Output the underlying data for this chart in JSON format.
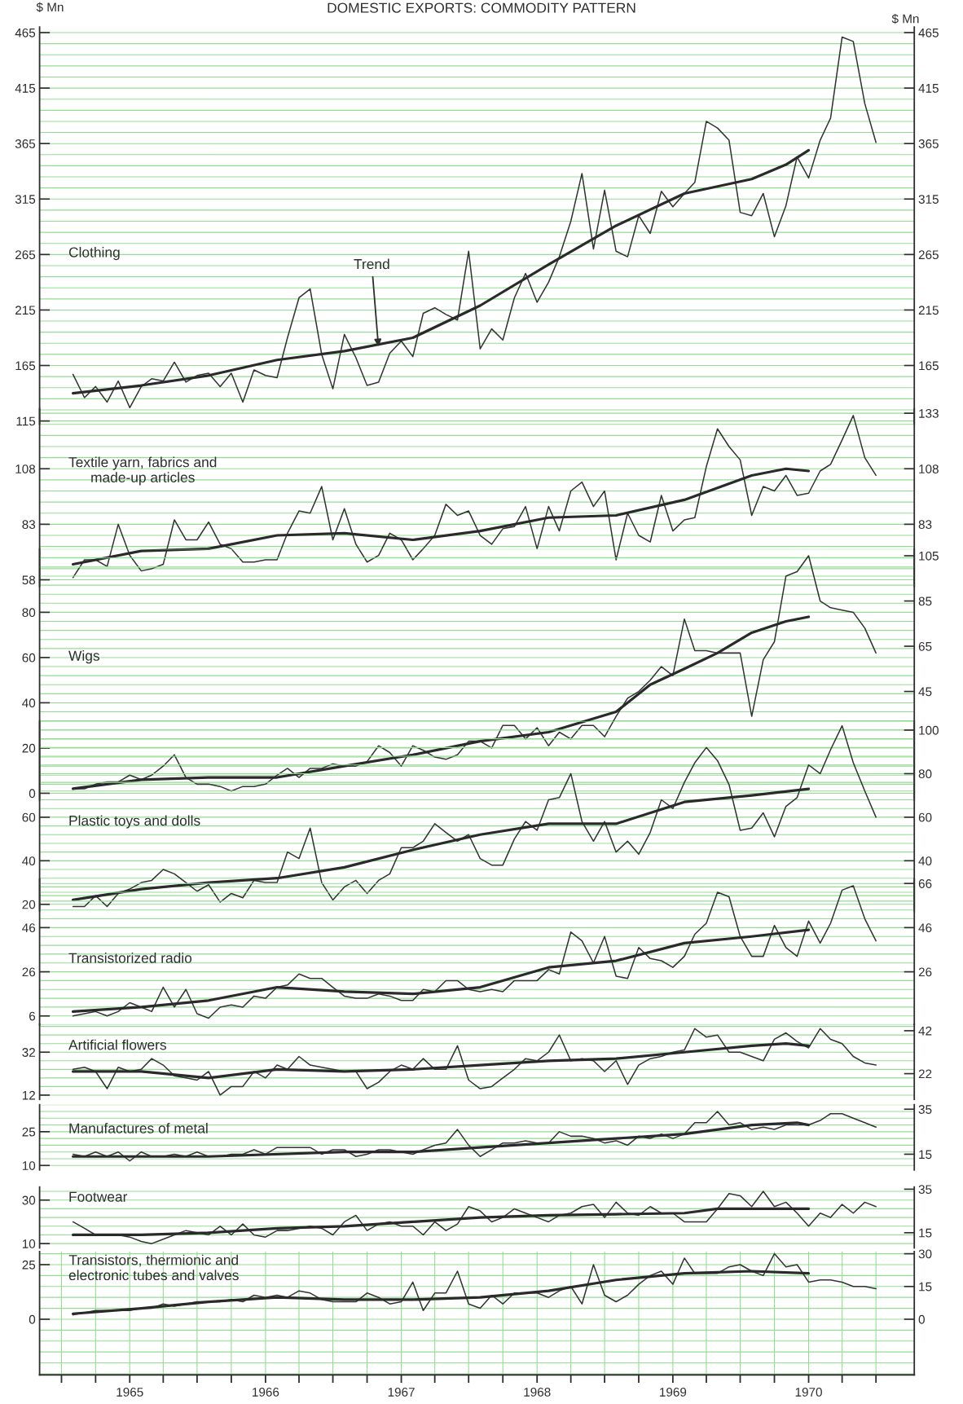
{
  "chart_data": [
    {
      "type": "line",
      "title": "Clothing",
      "ylabel": "$ Mn",
      "y2label": "$ Mn",
      "line_style": "solid",
      "grid": true,
      "tick_labels": "y",
      "annotations": [
        "DOMESTIC EXPORTS: COMMODITY PATTERN",
        {
          "text": "Trend",
          "x": "1966-11",
          "y": 180
        }
      ],
      "x": [
        "1964-08",
        "1964-09",
        "1964-10",
        "1964-11",
        "1964-12",
        "1965-01",
        "1965-02",
        "1965-03",
        "1965-04",
        "1965-05",
        "1965-06",
        "1965-07",
        "1965-08",
        "1965-09",
        "1965-10",
        "1965-11",
        "1965-12",
        "1966-01",
        "1966-02",
        "1966-03",
        "1966-04",
        "1966-05",
        "1966-06",
        "1966-07",
        "1966-08",
        "1966-09",
        "1966-10",
        "1966-11",
        "1966-12",
        "1967-01",
        "1967-02",
        "1967-03",
        "1967-04",
        "1967-05",
        "1967-06",
        "1967-07",
        "1967-08",
        "1967-09",
        "1967-10",
        "1967-11",
        "1967-12",
        "1968-01",
        "1968-02",
        "1968-03",
        "1968-04",
        "1968-05",
        "1968-06",
        "1968-07",
        "1968-08",
        "1968-09",
        "1968-10",
        "1968-11",
        "1968-12",
        "1969-01",
        "1969-02",
        "1969-03",
        "1969-04",
        "1969-05",
        "1969-06",
        "1969-07",
        "1969-08",
        "1969-09",
        "1969-10",
        "1969-11",
        "1969-12",
        "1970-01",
        "1970-02",
        "1970-03",
        "1970-04",
        "1970-05",
        "1970-06",
        "1970-07"
      ],
      "series": [
        {
          "color": "#333333",
          "values": [
            157,
            136,
            146,
            132,
            151,
            127,
            146,
            153,
            151,
            168,
            150,
            156,
            158,
            146,
            158,
            132,
            161,
            156,
            154,
            190,
            226,
            234,
            175,
            144,
            193,
            172,
            147,
            150,
            176,
            187,
            173,
            212,
            217,
            211,
            206,
            268,
            180,
            198,
            188,
            226,
            248,
            222,
            240,
            263,
            295,
            338,
            270,
            323,
            268,
            263,
            300,
            284,
            322,
            308,
            320,
            330,
            385,
            379,
            368,
            303,
            300,
            320,
            281,
            309,
            353,
            334,
            368,
            388,
            461,
            457,
            401,
            366
          ]
        },
        {
          "color": "#2a2a2a",
          "type": "line",
          "x": [
            "1964-08",
            "1965-02",
            "1965-08",
            "1966-02",
            "1966-08",
            "1967-02",
            "1967-08",
            "1968-02",
            "1968-08",
            "1969-02",
            "1969-08",
            "1969-11",
            "1970-01"
          ],
          "values": [
            140,
            147,
            156,
            170,
            178,
            190,
            219,
            256,
            291,
            320,
            333,
            346,
            359
          ]
        }
      ],
      "xlim": [
        "1964-05-03",
        "1970-10-12"
      ],
      "ylim": [
        112,
        470
      ],
      "yticks": [
        115,
        165,
        215,
        265,
        315,
        365,
        415,
        465
      ],
      "y2lim": [
        112,
        470
      ],
      "y2ticks": [
        165,
        215,
        265,
        315,
        365,
        415,
        465
      ]
    },
    {
      "type": "line",
      "title": "Textile yarn, fabrics and\nmade-up articles",
      "line_style": "solid",
      "grid": true,
      "tick_labels": "y",
      "x": [
        "1964-08",
        "1964-09",
        "1964-10",
        "1964-11",
        "1964-12",
        "1965-01",
        "1965-02",
        "1965-03",
        "1965-04",
        "1965-05",
        "1965-06",
        "1965-07",
        "1965-08",
        "1965-09",
        "1965-10",
        "1965-11",
        "1965-12",
        "1966-01",
        "1966-02",
        "1966-03",
        "1966-04",
        "1966-05",
        "1966-06",
        "1966-07",
        "1966-08",
        "1966-09",
        "1966-10",
        "1966-11",
        "1966-12",
        "1967-01",
        "1967-02",
        "1967-03",
        "1967-04",
        "1967-05",
        "1967-06",
        "1967-07",
        "1967-08",
        "1967-09",
        "1967-10",
        "1967-11",
        "1967-12",
        "1968-01",
        "1968-02",
        "1968-03",
        "1968-04",
        "1968-05",
        "1968-06",
        "1968-07",
        "1968-08",
        "1968-09",
        "1968-10",
        "1968-11",
        "1968-12",
        "1969-01",
        "1969-02",
        "1969-03",
        "1969-04",
        "1969-05",
        "1969-06",
        "1969-07",
        "1969-08",
        "1969-09",
        "1969-10",
        "1969-11",
        "1969-12",
        "1970-01",
        "1970-02",
        "1970-03",
        "1970-04",
        "1970-05",
        "1970-06",
        "1970-07"
      ],
      "series": [
        {
          "color": "#333333",
          "values": [
            59,
            67,
            67,
            64,
            83,
            69,
            62,
            63,
            65,
            85,
            76,
            76,
            84,
            74,
            72,
            66,
            66,
            67,
            67,
            79,
            89,
            88,
            100,
            76,
            90,
            74,
            66,
            69,
            79,
            76,
            67,
            72,
            78,
            92,
            87,
            89,
            78,
            74,
            81,
            82,
            91,
            72,
            91,
            80,
            98,
            102,
            91,
            98,
            67,
            88,
            78,
            75,
            96,
            80,
            85,
            86,
            109,
            126,
            118,
            112,
            87,
            100,
            98,
            105,
            96,
            97,
            107,
            110,
            121,
            132,
            113,
            105
          ]
        },
        {
          "color": "#2a2a2a",
          "type": "line",
          "x": [
            "1964-08",
            "1965-02",
            "1965-08",
            "1966-02",
            "1966-08",
            "1967-02",
            "1967-08",
            "1968-02",
            "1968-08",
            "1969-02",
            "1969-08",
            "1969-11",
            "1970-01"
          ],
          "values": [
            65,
            71,
            72,
            78,
            79,
            76,
            80,
            86,
            87,
            94,
            105,
            108,
            107
          ]
        }
      ],
      "xlim": [
        "1964-05-03",
        "1970-10-12"
      ],
      "ylim": [
        55,
        135
      ],
      "yticks": [
        58,
        83,
        108
      ],
      "y2lim": [
        55,
        135
      ],
      "y2ticks": [
        83,
        108,
        133
      ]
    },
    {
      "type": "line",
      "title": "Wigs",
      "line_style": "solid",
      "grid": true,
      "tick_labels": "y",
      "x": [
        "1964-08",
        "1964-09",
        "1964-10",
        "1964-11",
        "1964-12",
        "1965-01",
        "1965-02",
        "1965-03",
        "1965-04",
        "1965-05",
        "1965-06",
        "1965-07",
        "1965-08",
        "1965-09",
        "1965-10",
        "1965-11",
        "1965-12",
        "1966-01",
        "1966-02",
        "1966-03",
        "1966-04",
        "1966-05",
        "1966-06",
        "1966-07",
        "1966-08",
        "1966-09",
        "1966-10",
        "1966-11",
        "1966-12",
        "1967-01",
        "1967-02",
        "1967-03",
        "1967-04",
        "1967-05",
        "1967-06",
        "1967-07",
        "1967-08",
        "1967-09",
        "1967-10",
        "1967-11",
        "1967-12",
        "1968-01",
        "1968-02",
        "1968-03",
        "1968-04",
        "1968-05",
        "1968-06",
        "1968-07",
        "1968-08",
        "1968-09",
        "1968-10",
        "1968-11",
        "1968-12",
        "1969-01",
        "1969-02",
        "1969-03",
        "1969-04",
        "1969-05",
        "1969-06",
        "1969-07",
        "1969-08",
        "1969-09",
        "1969-10",
        "1969-11",
        "1969-12",
        "1970-01",
        "1970-02",
        "1970-03",
        "1970-04",
        "1970-05",
        "1970-06",
        "1970-07"
      ],
      "series": [
        {
          "color": "#333333",
          "values": [
            2,
            2,
            4,
            5,
            5,
            8,
            6,
            8,
            12,
            17,
            7,
            4,
            4,
            3,
            1,
            3,
            3,
            4,
            8,
            11,
            7,
            11,
            11,
            13,
            12,
            12,
            14,
            21,
            18,
            12,
            21,
            19,
            16,
            15,
            17,
            23,
            23,
            20,
            30,
            30,
            24,
            29,
            21,
            27,
            24,
            30,
            30,
            25,
            34,
            42,
            45,
            50,
            56,
            52,
            77,
            63,
            63,
            62,
            62,
            62,
            34,
            59,
            67,
            96,
            98,
            105,
            85,
            82,
            81,
            80,
            73,
            62
          ]
        },
        {
          "color": "#2a2a2a",
          "type": "line",
          "x": [
            "1964-08",
            "1965-02",
            "1965-08",
            "1966-02",
            "1966-08",
            "1967-02",
            "1967-08",
            "1968-02",
            "1968-08",
            "1968-11",
            "1969-02",
            "1969-05",
            "1969-08",
            "1969-11",
            "1970-01"
          ],
          "values": [
            2,
            6,
            7,
            7,
            12,
            17,
            23,
            27,
            36,
            48,
            55,
            62,
            71,
            76,
            78
          ]
        }
      ],
      "xlim": [
        "1964-05-03",
        "1970-10-12"
      ],
      "ylim": [
        -3,
        108
      ],
      "yticks": [
        0,
        20,
        40,
        60,
        80
      ],
      "y2lim": [
        -3,
        108
      ],
      "y2ticks": [
        45,
        65,
        85,
        105
      ]
    },
    {
      "type": "line",
      "title": "Plastic toys and dolls",
      "line_style": "solid",
      "grid": true,
      "tick_labels": "y",
      "x": [
        "1964-08",
        "1964-09",
        "1964-10",
        "1964-11",
        "1964-12",
        "1965-01",
        "1965-02",
        "1965-03",
        "1965-04",
        "1965-05",
        "1965-06",
        "1965-07",
        "1965-08",
        "1965-09",
        "1965-10",
        "1965-11",
        "1965-12",
        "1966-01",
        "1966-02",
        "1966-03",
        "1966-04",
        "1966-05",
        "1966-06",
        "1966-07",
        "1966-08",
        "1966-09",
        "1966-10",
        "1966-11",
        "1966-12",
        "1967-01",
        "1967-02",
        "1967-03",
        "1967-04",
        "1967-05",
        "1967-06",
        "1967-07",
        "1967-08",
        "1967-09",
        "1967-10",
        "1967-11",
        "1967-12",
        "1968-01",
        "1968-02",
        "1968-03",
        "1968-04",
        "1968-05",
        "1968-06",
        "1968-07",
        "1968-08",
        "1968-09",
        "1968-10",
        "1968-11",
        "1968-12",
        "1969-01",
        "1969-02",
        "1969-03",
        "1969-04",
        "1969-05",
        "1969-06",
        "1969-07",
        "1969-08",
        "1969-09",
        "1969-10",
        "1969-11",
        "1969-12",
        "1970-01",
        "1970-02",
        "1970-03",
        "1970-04",
        "1970-05",
        "1970-06",
        "1970-07"
      ],
      "series": [
        {
          "color": "#333333",
          "values": [
            19,
            19,
            24,
            19,
            25,
            27,
            30,
            31,
            36,
            34,
            30,
            26,
            29,
            21,
            25,
            23,
            31,
            30,
            30,
            44,
            41,
            55,
            30,
            22,
            28,
            31,
            25,
            31,
            34,
            46,
            46,
            49,
            57,
            53,
            49,
            52,
            41,
            38,
            38,
            50,
            58,
            54,
            68,
            69,
            80,
            58,
            49,
            58,
            44,
            49,
            43,
            53,
            68,
            64,
            76,
            85,
            92,
            86,
            75,
            54,
            55,
            62,
            51,
            65,
            69,
            84,
            80,
            91,
            102,
            85,
            72,
            60
          ]
        },
        {
          "color": "#2a2a2a",
          "type": "line",
          "x": [
            "1964-08",
            "1965-02",
            "1965-08",
            "1966-02",
            "1966-08",
            "1967-02",
            "1967-08",
            "1968-02",
            "1968-08",
            "1969-02",
            "1969-08",
            "1970-01"
          ],
          "values": [
            22,
            27,
            30,
            32,
            37,
            45,
            52,
            57,
            57,
            67,
            70,
            73
          ]
        }
      ],
      "xlim": [
        "1964-05-03",
        "1970-10-12"
      ],
      "ylim": [
        17,
        104
      ],
      "yticks": [
        20,
        40,
        60
      ],
      "y2lim": [
        17,
        104
      ],
      "y2ticks": [
        40,
        60,
        80,
        100
      ]
    },
    {
      "type": "line",
      "title": "Transistorized radio",
      "line_style": "solid",
      "grid": true,
      "tick_labels": "y",
      "x": [
        "1964-08",
        "1964-09",
        "1964-10",
        "1964-11",
        "1964-12",
        "1965-01",
        "1965-02",
        "1965-03",
        "1965-04",
        "1965-05",
        "1965-06",
        "1965-07",
        "1965-08",
        "1965-09",
        "1965-10",
        "1965-11",
        "1965-12",
        "1966-01",
        "1966-02",
        "1966-03",
        "1966-04",
        "1966-05",
        "1966-06",
        "1966-07",
        "1966-08",
        "1966-09",
        "1966-10",
        "1966-11",
        "1966-12",
        "1967-01",
        "1967-02",
        "1967-03",
        "1967-04",
        "1967-05",
        "1967-06",
        "1967-07",
        "1967-08",
        "1967-09",
        "1967-10",
        "1967-11",
        "1967-12",
        "1968-01",
        "1968-02",
        "1968-03",
        "1968-04",
        "1968-05",
        "1968-06",
        "1968-07",
        "1968-08",
        "1968-09",
        "1968-10",
        "1968-11",
        "1968-12",
        "1969-01",
        "1969-02",
        "1969-03",
        "1969-04",
        "1969-05",
        "1969-06",
        "1969-07",
        "1969-08",
        "1969-09",
        "1969-10",
        "1969-11",
        "1969-12",
        "1970-01",
        "1970-02",
        "1970-03",
        "1970-04",
        "1970-05",
        "1970-06",
        "1970-07"
      ],
      "series": [
        {
          "color": "#333333",
          "values": [
            6,
            7,
            8,
            6,
            8,
            12,
            10,
            8,
            19,
            10,
            18,
            7,
            5,
            10,
            11,
            10,
            15,
            14,
            19,
            20,
            25,
            23,
            23,
            19,
            15,
            14,
            14,
            16,
            15,
            13,
            13,
            18,
            17,
            22,
            22,
            18,
            17,
            18,
            17,
            22,
            22,
            22,
            27,
            25,
            44,
            40,
            30,
            42,
            24,
            23,
            37,
            32,
            31,
            28,
            33,
            43,
            48,
            62,
            60,
            42,
            33,
            33,
            47,
            37,
            33,
            49,
            39,
            48,
            63,
            65,
            50,
            40
          ]
        },
        {
          "color": "#2a2a2a",
          "type": "line",
          "x": [
            "1964-08",
            "1965-02",
            "1965-08",
            "1966-02",
            "1966-08",
            "1967-02",
            "1967-08",
            "1968-02",
            "1968-08",
            "1969-02",
            "1969-08",
            "1970-01"
          ],
          "values": [
            8,
            10,
            13,
            19,
            17,
            16,
            19,
            28,
            31,
            39,
            42,
            45
          ]
        }
      ],
      "xlim": [
        "1964-05-03",
        "1970-10-12"
      ],
      "ylim": [
        2,
        68
      ],
      "yticks": [
        6,
        26,
        46
      ],
      "y2lim": [
        2,
        68
      ],
      "y2ticks": [
        26,
        46,
        66
      ]
    },
    {
      "type": "line",
      "title": "Artificial flowers",
      "line_style": "solid",
      "grid": true,
      "tick_labels": "y",
      "x": [
        "1964-08",
        "1964-09",
        "1964-10",
        "1964-11",
        "1964-12",
        "1965-01",
        "1965-02",
        "1965-03",
        "1965-04",
        "1965-05",
        "1965-06",
        "1965-07",
        "1965-08",
        "1965-09",
        "1965-10",
        "1965-11",
        "1965-12",
        "1966-01",
        "1966-02",
        "1966-03",
        "1966-04",
        "1966-05",
        "1966-06",
        "1966-07",
        "1966-08",
        "1966-09",
        "1966-10",
        "1966-11",
        "1966-12",
        "1967-01",
        "1967-02",
        "1967-03",
        "1967-04",
        "1967-05",
        "1967-06",
        "1967-07",
        "1967-08",
        "1967-09",
        "1967-10",
        "1967-11",
        "1967-12",
        "1968-01",
        "1968-02",
        "1968-03",
        "1968-04",
        "1968-05",
        "1968-06",
        "1968-07",
        "1968-08",
        "1968-09",
        "1968-10",
        "1968-11",
        "1968-12",
        "1969-01",
        "1969-02",
        "1969-03",
        "1969-04",
        "1969-05",
        "1969-06",
        "1969-07",
        "1969-08",
        "1969-09",
        "1969-10",
        "1969-11",
        "1969-12",
        "1970-01",
        "1970-02",
        "1970-03",
        "1970-04",
        "1970-05",
        "1970-06",
        "1970-07"
      ],
      "series": [
        {
          "color": "#333333",
          "values": [
            24,
            25,
            23,
            15,
            25,
            23,
            24,
            29,
            26,
            21,
            20,
            19,
            23,
            12,
            16,
            16,
            23,
            20,
            26,
            24,
            30,
            26,
            25,
            24,
            23,
            23,
            15,
            18,
            23,
            26,
            24,
            29,
            24,
            24,
            35,
            19,
            15,
            16,
            20,
            24,
            29,
            28,
            32,
            40,
            28,
            29,
            28,
            23,
            28,
            17,
            26,
            29,
            30,
            32,
            33,
            43,
            39,
            40,
            32,
            32,
            30,
            28,
            38,
            41,
            37,
            34,
            43,
            38,
            36,
            30,
            27,
            26
          ]
        },
        {
          "color": "#2a2a2a",
          "type": "line",
          "x": [
            "1964-08",
            "1965-02",
            "1965-08",
            "1966-02",
            "1966-08",
            "1967-02",
            "1967-08",
            "1968-02",
            "1968-08",
            "1969-02",
            "1969-08",
            "1969-11",
            "1970-01"
          ],
          "values": [
            23,
            23,
            20,
            24,
            23,
            24,
            26,
            28,
            29,
            32,
            35,
            36,
            35
          ]
        }
      ],
      "xlim": [
        "1964-05-03",
        "1970-10-12"
      ],
      "ylim": [
        10,
        45
      ],
      "yticks": [
        12,
        32
      ],
      "y2lim": [
        10,
        45
      ],
      "y2ticks": [
        22,
        42
      ]
    },
    {
      "type": "line",
      "title": "Manufactures of metal",
      "line_style": "solid",
      "grid": true,
      "tick_labels": "y",
      "x": [
        "1964-08",
        "1964-09",
        "1964-10",
        "1964-11",
        "1964-12",
        "1965-01",
        "1965-02",
        "1965-03",
        "1965-04",
        "1965-05",
        "1965-06",
        "1965-07",
        "1965-08",
        "1965-09",
        "1965-10",
        "1965-11",
        "1965-12",
        "1966-01",
        "1966-02",
        "1966-03",
        "1966-04",
        "1966-05",
        "1966-06",
        "1966-07",
        "1966-08",
        "1966-09",
        "1966-10",
        "1966-11",
        "1966-12",
        "1967-01",
        "1967-02",
        "1967-03",
        "1967-04",
        "1967-05",
        "1967-06",
        "1967-07",
        "1967-08",
        "1967-09",
        "1967-10",
        "1967-11",
        "1967-12",
        "1968-01",
        "1968-02",
        "1968-03",
        "1968-04",
        "1968-05",
        "1968-06",
        "1968-07",
        "1968-08",
        "1968-09",
        "1968-10",
        "1968-11",
        "1968-12",
        "1969-01",
        "1969-02",
        "1969-03",
        "1969-04",
        "1969-05",
        "1969-06",
        "1969-07",
        "1969-08",
        "1969-09",
        "1969-10",
        "1969-11",
        "1969-12",
        "1970-01",
        "1970-02",
        "1970-03",
        "1970-04",
        "1970-05",
        "1970-06",
        "1970-07"
      ],
      "series": [
        {
          "color": "#333333",
          "values": [
            15,
            14,
            16,
            14,
            16,
            12,
            16,
            14,
            14,
            15,
            14,
            16,
            14,
            14,
            15,
            15,
            17,
            15,
            18,
            18,
            18,
            18,
            15,
            17,
            17,
            14,
            15,
            17,
            17,
            16,
            15,
            17,
            19,
            20,
            26,
            19,
            14,
            17,
            20,
            20,
            21,
            20,
            20,
            25,
            23,
            23,
            22,
            20,
            21,
            19,
            23,
            22,
            24,
            22,
            24,
            29,
            29,
            34,
            28,
            29,
            26,
            27,
            26,
            28,
            28,
            28,
            30,
            33,
            33,
            31,
            29,
            27
          ]
        },
        {
          "color": "#2a2a2a",
          "type": "line",
          "x": [
            "1964-08",
            "1965-08",
            "1966-08",
            "1967-02",
            "1967-08",
            "1968-02",
            "1968-08",
            "1969-02",
            "1969-08",
            "1969-12",
            "1970-01"
          ],
          "values": [
            14,
            14,
            16,
            16,
            18,
            20,
            22,
            24,
            28,
            29,
            28
          ]
        }
      ],
      "xlim": [
        "1964-05-03",
        "1970-10-12"
      ],
      "ylim": [
        8,
        37
      ],
      "yticks": [
        10,
        25
      ],
      "y2lim": [
        8,
        37
      ],
      "y2ticks": [
        15,
        35
      ]
    },
    {
      "type": "line",
      "title": "Footwear",
      "line_style": "solid",
      "grid": true,
      "tick_labels": "y",
      "x": [
        "1964-08",
        "1964-09",
        "1964-10",
        "1964-11",
        "1964-12",
        "1965-01",
        "1965-02",
        "1965-03",
        "1965-04",
        "1965-05",
        "1965-06",
        "1965-07",
        "1965-08",
        "1965-09",
        "1965-10",
        "1965-11",
        "1965-12",
        "1966-01",
        "1966-02",
        "1966-03",
        "1966-04",
        "1966-05",
        "1966-06",
        "1966-07",
        "1966-08",
        "1966-09",
        "1966-10",
        "1966-11",
        "1966-12",
        "1967-01",
        "1967-02",
        "1967-03",
        "1967-04",
        "1967-05",
        "1967-06",
        "1967-07",
        "1967-08",
        "1967-09",
        "1967-10",
        "1967-11",
        "1967-12",
        "1968-01",
        "1968-02",
        "1968-03",
        "1968-04",
        "1968-05",
        "1968-06",
        "1968-07",
        "1968-08",
        "1968-09",
        "1968-10",
        "1968-11",
        "1968-12",
        "1969-01",
        "1969-02",
        "1969-03",
        "1969-04",
        "1969-05",
        "1969-06",
        "1969-07",
        "1969-08",
        "1969-09",
        "1969-10",
        "1969-11",
        "1969-12",
        "1970-01",
        "1970-02",
        "1970-03",
        "1970-04",
        "1970-05",
        "1970-06",
        "1970-07"
      ],
      "series": [
        {
          "color": "#333333",
          "values": [
            20,
            17,
            14,
            14,
            14,
            13,
            11,
            10,
            12,
            14,
            16,
            15,
            14,
            18,
            14,
            19,
            14,
            13,
            16,
            16,
            17,
            18,
            17,
            14,
            20,
            23,
            16,
            19,
            20,
            18,
            18,
            14,
            20,
            16,
            19,
            27,
            25,
            20,
            22,
            26,
            24,
            22,
            20,
            23,
            24,
            27,
            28,
            22,
            29,
            24,
            23,
            27,
            24,
            24,
            20,
            20,
            20,
            26,
            33,
            32,
            27,
            34,
            27,
            29,
            24,
            18,
            24,
            22,
            28,
            24,
            29,
            27
          ]
        },
        {
          "color": "#2a2a2a",
          "type": "line",
          "x": [
            "1964-08",
            "1965-02",
            "1965-08",
            "1966-02",
            "1966-08",
            "1967-02",
            "1967-08",
            "1968-02",
            "1968-08",
            "1969-02",
            "1969-05",
            "1970-01"
          ],
          "values": [
            14,
            14,
            15,
            17,
            18,
            20,
            22,
            23,
            23.5,
            24,
            26,
            26
          ]
        }
      ],
      "xlim": [
        "1964-05-03",
        "1970-10-12"
      ],
      "ylim": [
        8,
        36
      ],
      "yticks": [
        10,
        30
      ],
      "y2lim": [
        8,
        36
      ],
      "y2ticks": [
        15,
        35
      ]
    },
    {
      "type": "line",
      "title": "Transistors, thermionic and\nelectronic tubes and valves",
      "line_style": "solid",
      "grid": true,
      "x": [
        "1964-08",
        "1964-09",
        "1964-10",
        "1964-11",
        "1964-12",
        "1965-01",
        "1965-02",
        "1965-03",
        "1965-04",
        "1965-05",
        "1965-06",
        "1965-07",
        "1965-08",
        "1965-09",
        "1965-10",
        "1965-11",
        "1965-12",
        "1966-01",
        "1966-02",
        "1966-03",
        "1966-04",
        "1966-05",
        "1966-06",
        "1966-07",
        "1966-08",
        "1966-09",
        "1966-10",
        "1966-11",
        "1966-12",
        "1967-01",
        "1967-02",
        "1967-03",
        "1967-04",
        "1967-05",
        "1967-06",
        "1967-07",
        "1967-08",
        "1967-09",
        "1967-10",
        "1967-11",
        "1967-12",
        "1968-01",
        "1968-02",
        "1968-03",
        "1968-04",
        "1968-05",
        "1968-06",
        "1968-07",
        "1968-08",
        "1968-09",
        "1968-10",
        "1968-11",
        "1968-12",
        "1969-01",
        "1969-02",
        "1969-03",
        "1969-04",
        "1969-05",
        "1969-06",
        "1969-07",
        "1969-08",
        "1969-09",
        "1969-10",
        "1969-11",
        "1969-12",
        "1970-01",
        "1970-02",
        "1970-03",
        "1970-04",
        "1970-05",
        "1970-06",
        "1970-07"
      ],
      "series": [
        {
          "color": "#333333",
          "values": [
            2,
            3,
            4,
            4,
            4,
            4,
            5,
            5,
            7,
            6,
            7,
            8,
            8,
            8,
            9,
            8,
            11,
            10,
            11,
            10,
            13,
            12,
            9,
            8,
            8,
            8,
            12,
            10,
            7,
            8,
            17,
            4,
            12,
            12,
            22,
            7,
            5,
            11,
            7,
            12,
            12,
            12,
            10,
            13,
            15,
            7,
            25,
            11,
            8,
            11,
            16,
            20,
            22,
            16,
            28,
            21,
            21,
            21,
            24,
            25,
            22,
            20,
            30,
            24,
            25,
            17,
            18,
            18,
            17,
            15,
            15,
            14
          ]
        },
        {
          "color": "#2a2a2a",
          "type": "line",
          "x": [
            "1964-08",
            "1965-02",
            "1965-08",
            "1966-02",
            "1966-08",
            "1967-02",
            "1967-08",
            "1968-02",
            "1968-08",
            "1969-02",
            "1969-08",
            "1970-01"
          ],
          "values": [
            2.5,
            5,
            8,
            10,
            9,
            9,
            10,
            13,
            18,
            21,
            22,
            21
          ]
        }
      ],
      "xlim": [
        "1964-05-03",
        "1970-10-12"
      ],
      "ylim": [
        -25.5,
        31
      ],
      "yticks": [
        0,
        25
      ],
      "y2lim": [
        -25.5,
        31
      ],
      "y2ticks": [
        0,
        15,
        30
      ],
      "xticks": [
        {
          "value": "1964-07",
          "label": null
        },
        {
          "value": "1964-10",
          "label": null
        },
        {
          "value": "1965",
          "label": "1965"
        },
        {
          "value": "1965-04",
          "label": null
        },
        {
          "value": "1965-07",
          "label": null
        },
        {
          "value": "1965-10",
          "label": null
        },
        {
          "value": "1966",
          "label": "1966"
        },
        {
          "value": "1966-04",
          "label": null
        },
        {
          "value": "1966-07",
          "label": null
        },
        {
          "value": "1966-10",
          "label": null
        },
        {
          "value": "1967",
          "label": "1967"
        },
        {
          "value": "1967-04",
          "label": null
        },
        {
          "value": "1967-07",
          "label": null
        },
        {
          "value": "1967-10",
          "label": null
        },
        {
          "value": "1968",
          "label": "1968"
        },
        {
          "value": "1968-04",
          "label": null
        },
        {
          "value": "1968-07",
          "label": null
        },
        {
          "value": "1968-10",
          "label": null
        },
        {
          "value": "1969",
          "label": "1969"
        },
        {
          "value": "1969-04",
          "label": null
        },
        {
          "value": "1969-07",
          "label": null
        },
        {
          "value": "1969-10",
          "label": null
        },
        {
          "value": "1970",
          "label": "1970"
        },
        {
          "value": "1970-04",
          "label": null
        },
        {
          "value": "1970-07",
          "label": null
        }
      ]
    }
  ]
}
